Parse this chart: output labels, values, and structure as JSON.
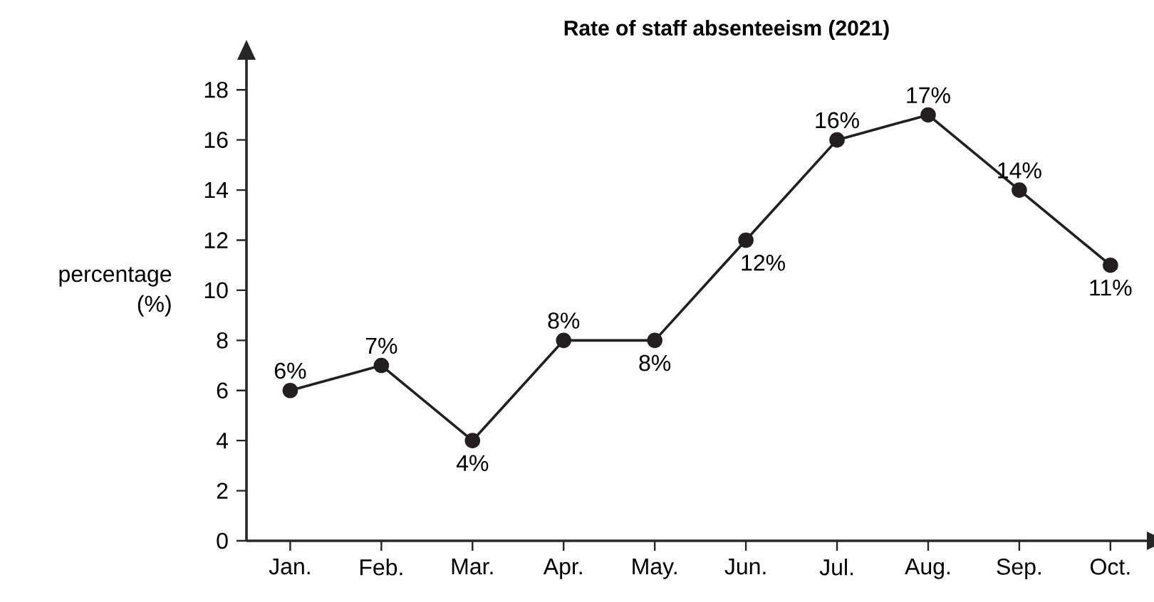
{
  "chart_data": {
    "type": "line",
    "title": "Rate of staff absenteeism (2021)",
    "ylabel": "percentage\n(%)",
    "categories": [
      "Jan.",
      "Feb.",
      "Mar.",
      "Apr.",
      "May.",
      "Jun.",
      "Jul.",
      "Aug.",
      "Sep.",
      "Oct."
    ],
    "series": [
      {
        "color": "#231f20",
        "values": [
          6,
          7,
          4,
          8,
          8,
          12,
          16,
          17,
          14,
          11
        ],
        "value_labels": [
          "6%",
          "7%",
          "4%",
          "8%",
          "8%",
          "12%",
          "16%",
          "17%",
          "14%",
          "11%"
        ]
      }
    ],
    "ylim": [
      0,
      19.2
    ],
    "yticks": [
      0,
      2,
      4,
      6,
      8,
      10,
      12,
      14,
      16,
      18
    ],
    "grid": false,
    "marker": "circle",
    "line_style": "solid"
  }
}
